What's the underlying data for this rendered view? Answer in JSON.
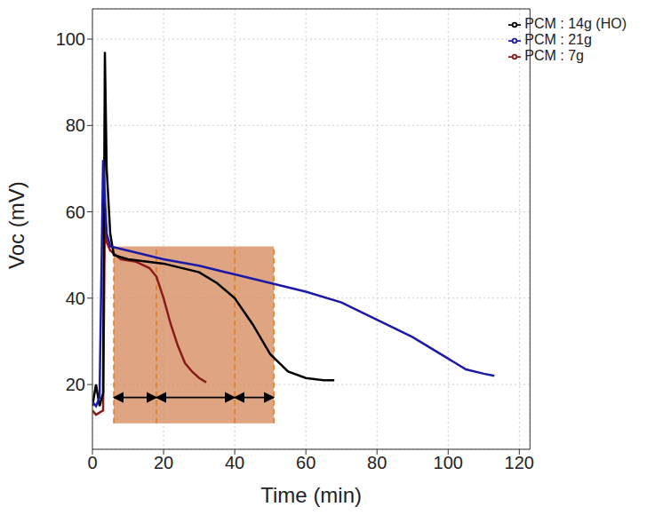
{
  "chart_data": {
    "type": "line",
    "x_label": "Time (min)",
    "y_label": "Voc (mV)",
    "xlim": [
      0,
      123
    ],
    "xticks": [
      0,
      20,
      40,
      60,
      80,
      100,
      120
    ],
    "ylim": [
      5,
      107
    ],
    "yticks": [
      20,
      40,
      60,
      80,
      100
    ],
    "grid": true,
    "legend": "top-right",
    "series": [
      {
        "name": "PCM : 7g",
        "color": "#8b1a1a",
        "x": [
          0,
          1,
          2,
          3,
          3.5,
          4,
          5,
          8,
          12,
          16,
          18,
          20,
          22,
          24,
          26,
          28,
          30,
          32
        ],
        "values": [
          14,
          13,
          13.5,
          14,
          60,
          53,
          51,
          49,
          48.5,
          47,
          45,
          40,
          34,
          29,
          25,
          23,
          21.5,
          20.5
        ]
      },
      {
        "name": "PCM : 14g (HO)",
        "color": "#000000",
        "x": [
          0,
          1,
          2,
          3,
          3.5,
          4,
          5,
          6,
          10,
          20,
          30,
          35,
          40,
          45,
          50,
          55,
          60,
          65,
          68
        ],
        "values": [
          15,
          20,
          15,
          18,
          97,
          70,
          55,
          50,
          49,
          48,
          46,
          43.5,
          40,
          34,
          27,
          23,
          21.5,
          21,
          21
        ]
      },
      {
        "name": "PCM : 21g",
        "color": "#1a1aa6",
        "x": [
          0,
          1,
          2,
          3,
          4,
          5,
          10,
          20,
          30,
          40,
          50,
          60,
          70,
          80,
          90,
          100,
          105,
          110,
          113
        ],
        "values": [
          16,
          15,
          17,
          72,
          55,
          52,
          51,
          49,
          47.5,
          45.5,
          43.5,
          41.5,
          39,
          35,
          31,
          26,
          23.5,
          22.5,
          22
        ]
      }
    ],
    "shaded_region": {
      "x": [
        6,
        51
      ],
      "y": [
        11,
        52
      ],
      "color": "#d4875a"
    },
    "dividers": {
      "x": [
        6,
        18,
        40,
        51
      ],
      "color": "#e07b20"
    },
    "arrows": [
      {
        "x": [
          6,
          18
        ],
        "y": 17
      },
      {
        "x": [
          18,
          40
        ],
        "y": 17
      },
      {
        "x": [
          40,
          51
        ],
        "y": 17
      }
    ]
  }
}
